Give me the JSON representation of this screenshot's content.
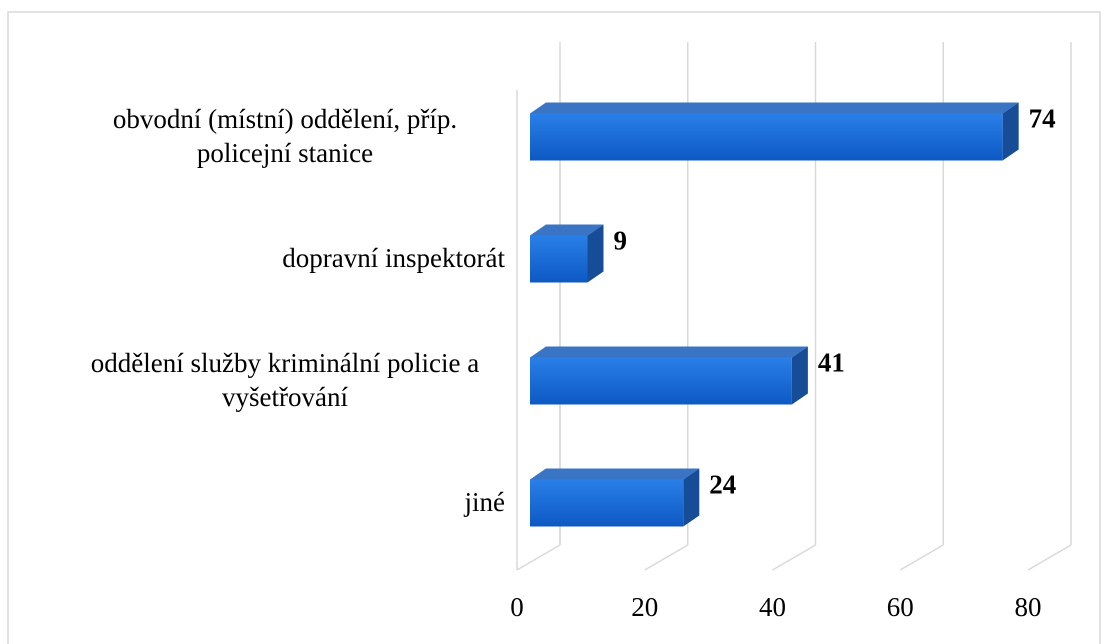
{
  "chart_data": {
    "type": "bar3d",
    "orientation": "horizontal",
    "categories": [
      "obvodní (místní) oddělení, příp. policejní stanice",
      "dopravní inspektorát",
      "oddělení služby kriminální policie a vyšetřování",
      "jiné"
    ],
    "values": [
      74,
      9,
      41,
      24
    ],
    "color": "#1565d8",
    "xlim": [
      0,
      80
    ],
    "xticks": [
      0,
      20,
      40,
      60,
      80
    ],
    "grid": true
  }
}
